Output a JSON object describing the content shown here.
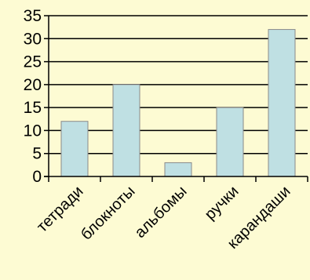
{
  "chart_data": {
    "type": "bar",
    "categories": [
      "тетради",
      "блокноты",
      "альбомы",
      "ручки",
      "карандаши"
    ],
    "values": [
      12,
      20,
      3,
      15,
      32
    ],
    "title": "",
    "xlabel": "",
    "ylabel": "",
    "ylim": [
      0,
      35
    ],
    "yticks": [
      0,
      5,
      10,
      15,
      20,
      25,
      30,
      35
    ],
    "grid": true,
    "legend": "none",
    "colors": {
      "background": "#fdfbd3",
      "bar_fill": "#bfe0e3",
      "bar_stroke": "#8a8a8a",
      "gridline": "#000000",
      "axis": "#000000",
      "text": "#000000"
    }
  }
}
